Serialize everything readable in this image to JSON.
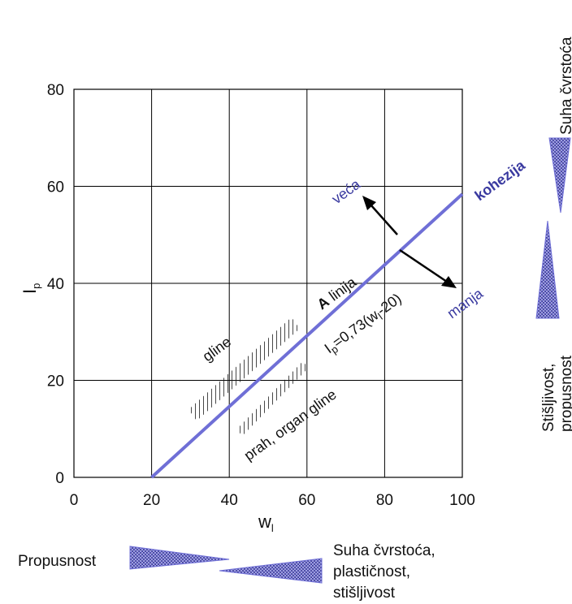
{
  "colors": {
    "a_line": "#6f6fd6",
    "blue_text": "#3a3aa0",
    "wedge_fill": "#7b7bd8",
    "wedge_dark": "#2b2b80",
    "grid": "#000000"
  },
  "chart_data": {
    "type": "line",
    "xlabel": "w",
    "xlabel_sub": "l",
    "ylabel": "I",
    "ylabel_sub": "p",
    "xlim": [
      0,
      100
    ],
    "ylim": [
      0,
      80
    ],
    "x_ticks": [
      0,
      20,
      40,
      60,
      80,
      100
    ],
    "y_ticks": [
      0,
      20,
      40,
      60,
      80
    ],
    "grid": true,
    "series": [
      {
        "name": "A linija",
        "x": [
          20,
          100
        ],
        "y": [
          0,
          58.4
        ]
      }
    ],
    "annotations": {
      "line_bold": "A",
      "line_rest": " linija",
      "equation_i": "I",
      "equation_sub": "p",
      "equation_rest": "=0,73(w",
      "equation_sub2": "l",
      "equation_end": "-20)",
      "zone_upper": "gline",
      "zone_lower": "prah, organ gline",
      "kohezija": "kohezija",
      "veca": "veća",
      "manja": "manja"
    },
    "hatch_bands": [
      {
        "name": "gline",
        "x": [
          29.5,
          56
        ],
        "y": [
          14,
          33
        ]
      },
      {
        "name": "prah, organ gline",
        "x": [
          42,
          59
        ],
        "y": [
          10,
          24
        ]
      }
    ]
  },
  "side_labels": {
    "right_top": "Suha čvrstoća",
    "right_bottom_1": "Stišljivost,",
    "right_bottom_2": "propusnost",
    "bottom_left": "Propusnost",
    "bottom_right_1": "Suha čvrstoća,",
    "bottom_right_2": "plastičnost,",
    "bottom_right_3": "stišljivost"
  }
}
